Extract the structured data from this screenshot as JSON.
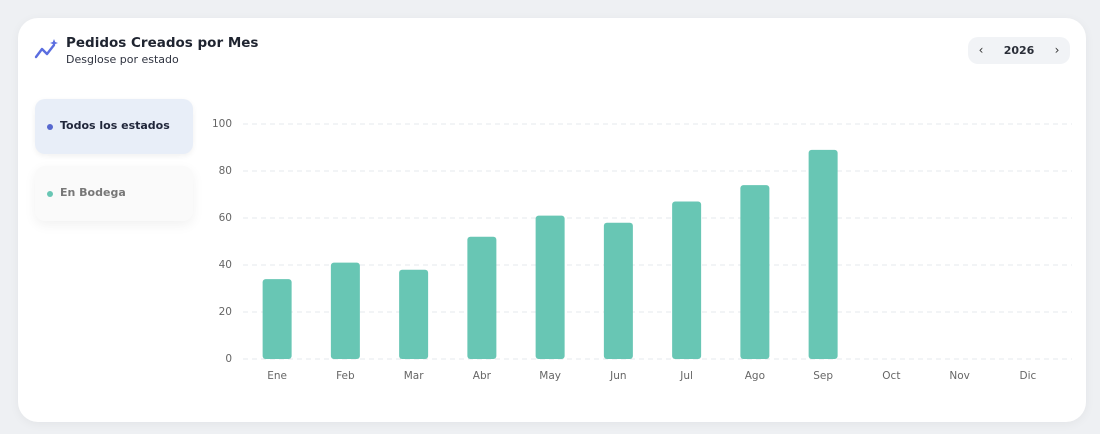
{
  "header": {
    "title": "Pedidos Creados por Mes",
    "subtitle": "Desglose por estado"
  },
  "year_picker": {
    "year": "2026"
  },
  "filters": [
    "Todos los estados",
    "En Bodega"
  ],
  "chart_data": {
    "type": "bar",
    "categories": [
      "Ene",
      "Feb",
      "Mar",
      "Abr",
      "May",
      "Jun",
      "Jul",
      "Ago",
      "Sep",
      "Oct",
      "Nov",
      "Dic"
    ],
    "values": [
      34,
      41,
      38,
      52,
      61,
      58,
      67,
      74,
      89,
      null,
      null,
      null
    ],
    "color": "#68c6b4",
    "ylim": [
      0,
      100
    ],
    "yticks": [
      0,
      20,
      40,
      60,
      80,
      100
    ],
    "grid": true
  }
}
